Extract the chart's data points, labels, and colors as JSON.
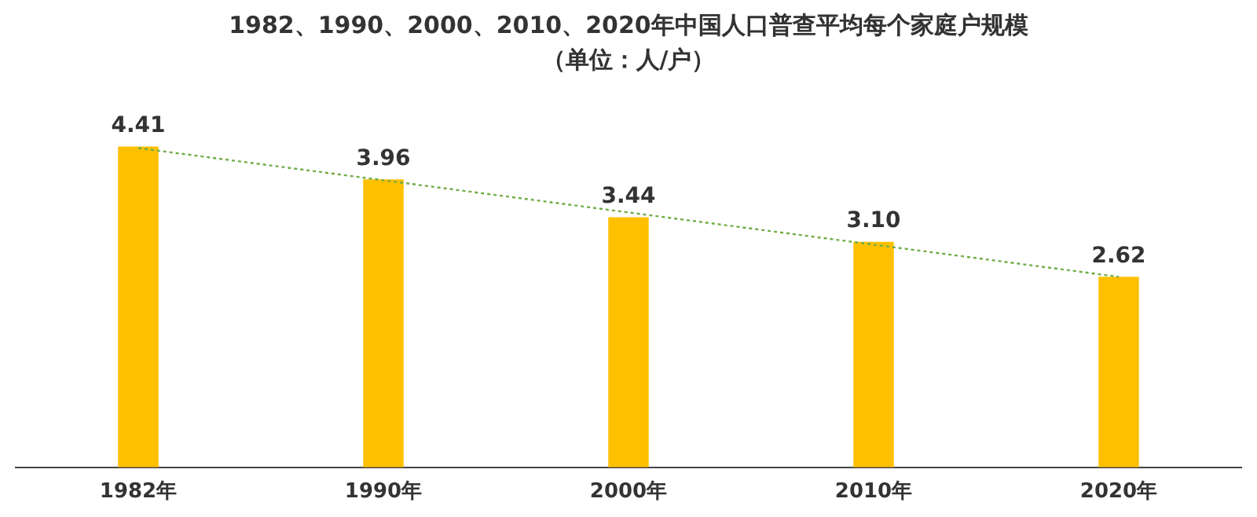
{
  "chart_data": {
    "type": "bar",
    "title": "1982、1990、2000、2010、2020年中国人口普查平均每个家庭户规模",
    "subtitle": "（单位：人/户）",
    "categories": [
      "1982年",
      "1990年",
      "2000年",
      "2010年",
      "2020年"
    ],
    "series": [
      {
        "color": "#ffc000",
        "values": [
          4.41,
          3.96,
          3.44,
          3.1,
          2.62
        ],
        "value_labels": [
          "4.41",
          "3.96",
          "3.44",
          "3.10",
          "2.62"
        ]
      },
      {
        "type": "line",
        "color": "#70ad47",
        "x": [
          "1982年",
          "2020年"
        ],
        "values": [
          4.39,
          2.62
        ],
        "line_style": "dotted",
        "marker": "none"
      }
    ],
    "legend": false,
    "grid": false
  }
}
